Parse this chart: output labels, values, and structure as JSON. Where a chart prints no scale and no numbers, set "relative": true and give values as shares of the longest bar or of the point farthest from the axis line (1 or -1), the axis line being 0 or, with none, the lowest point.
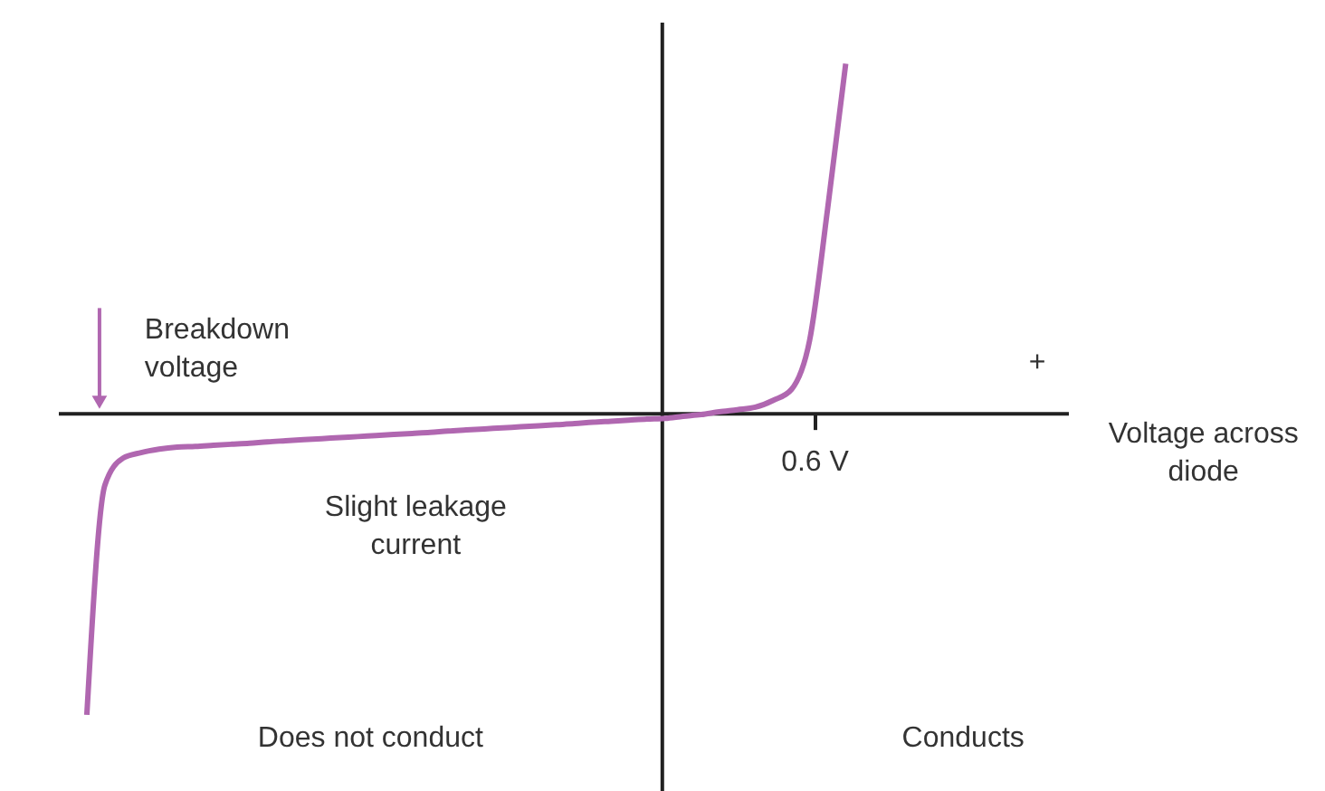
{
  "chart_data": {
    "type": "line",
    "relative": true,
    "categories": [
      null,
      null,
      null,
      null,
      null,
      null,
      null,
      null,
      null,
      null,
      null,
      null,
      null,
      null,
      null,
      null,
      null,
      null,
      null,
      null,
      null,
      null,
      null,
      null,
      null,
      null,
      null,
      null,
      null,
      null,
      null,
      null,
      null,
      null,
      null,
      null,
      null,
      null,
      null,
      null,
      null,
      null,
      null
    ],
    "series": [
      {
        "color": "#b067b0",
        "values": [
          -0.865,
          -0.207,
          -0.13,
          -0.114,
          -0.104,
          -0.098,
          -0.096,
          -0.093,
          -0.09,
          -0.087,
          -0.083,
          -0.08,
          -0.077,
          -0.074,
          -0.071,
          -0.068,
          -0.065,
          -0.062,
          -0.059,
          -0.056,
          -0.052,
          -0.049,
          -0.046,
          -0.043,
          -0.04,
          -0.037,
          -0.034,
          -0.031,
          -0.027,
          -0.024,
          -0.021,
          -0.018,
          -0.016,
          -0.01,
          -0.005,
          0.003,
          0.009,
          0.016,
          0.036,
          0.067,
          0.207,
          0.585,
          1.0
        ]
      }
    ],
    "marker": "none",
    "line_style": "solid",
    "annotations": [
      "0.6 V",
      "Breakdown voltage",
      "Slight leakage current",
      "Does not conduct",
      "Conducts",
      "+",
      "Voltage across diode"
    ]
  }
}
